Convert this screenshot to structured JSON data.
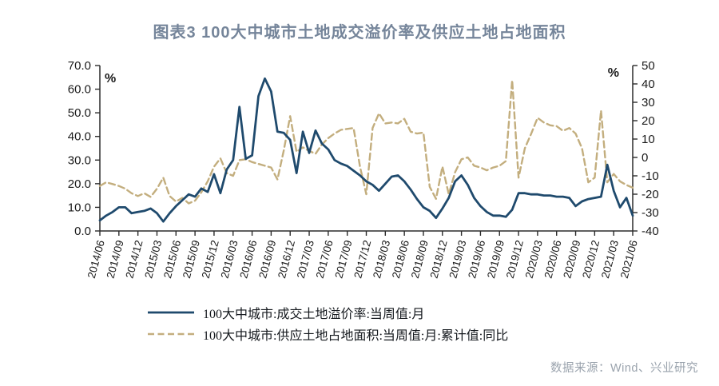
{
  "title": "图表3  100大中城市土地成交溢价率及供应土地占地面积",
  "source": "数据来源：Wind、兴业研究",
  "legend": [
    {
      "label": "100大中城市:成交土地溢价率:当周值:月",
      "style": "solid"
    },
    {
      "label": "100大中城市:供应土地占地面积:当周值:月:累计值:同比",
      "style": "dashed"
    }
  ],
  "colors": {
    "premium_line": "#1F4A6D",
    "supply_line": "#C3AE7E",
    "title_text": "#75859A",
    "source_text": "#9AA3AD",
    "axis_line": "#2b2b2b",
    "axis_text": "#1a1a1a"
  },
  "chart_data": {
    "type": "line",
    "x_start": "2014/06",
    "x_end": "2021/06",
    "x_freq": "monthly",
    "grid": false,
    "legend_position": "bottom",
    "x_tick_labels": [
      "2014/06",
      "2014/09",
      "2014/12",
      "2015/03",
      "2015/06",
      "2015/09",
      "2015/12",
      "2016/03",
      "2016/06",
      "2016/09",
      "2016/12",
      "2017/03",
      "2017/06",
      "2017/09",
      "2017/12",
      "2018/03",
      "2018/06",
      "2018/09",
      "2018/12",
      "2019/03",
      "2019/06",
      "2019/09",
      "2019/12",
      "2020/03",
      "2020/06",
      "2020/09",
      "2020/12",
      "2021/03",
      "2021/06"
    ],
    "left_axis": {
      "label": "%",
      "min": 0,
      "max": 70,
      "tick_labels": [
        "70.0",
        "60.0",
        "50.0",
        "40.0",
        "30.0",
        "20.0",
        "10.0",
        "0.0"
      ]
    },
    "right_axis": {
      "label": "%",
      "min": -40,
      "max": 50,
      "tick_labels": [
        "50",
        "40",
        "30",
        "20",
        "10",
        "0",
        "-10",
        "-20",
        "-30",
        "-40"
      ]
    },
    "series": [
      {
        "name": "100大中城市:成交土地溢价率:当周值:月",
        "axis": "left",
        "line": "solid",
        "color": "#1F4A6D",
        "values": [
          4.5,
          6.5,
          8,
          10,
          10,
          7.5,
          8,
          8.5,
          9.5,
          7.5,
          4,
          7.5,
          10.5,
          13,
          15.5,
          14.5,
          18,
          16.5,
          24,
          16,
          26,
          30,
          52.5,
          30.5,
          32,
          57,
          64.5,
          59,
          42,
          41.5,
          38.5,
          24.5,
          42,
          33,
          42.5,
          37,
          34.5,
          30,
          28.5,
          27.5,
          25.5,
          23.5,
          21,
          19.5,
          17,
          20,
          23,
          23.5,
          21,
          17.5,
          13.5,
          10,
          8.5,
          5.5,
          9.5,
          14,
          21,
          23.5,
          19.5,
          14,
          10.5,
          8,
          6.5,
          6.5,
          6,
          9,
          16,
          16,
          15.5,
          15.5,
          15,
          15,
          14.5,
          14.5,
          14,
          10.5,
          12.5,
          13.5,
          14,
          14.5,
          28,
          17,
          10,
          14,
          6.5
        ]
      },
      {
        "name": "100大中城市:供应土地占地面积:当周值:月:累计值:同比",
        "axis": "right",
        "line": "dashed",
        "color": "#C3AE7E",
        "values": [
          -15.5,
          -13.5,
          -14.5,
          -15.5,
          -17,
          -19.5,
          -21,
          -19.5,
          -21.5,
          -17,
          -11,
          -21,
          -24,
          -22,
          -25,
          -23.5,
          -19,
          -13,
          -5,
          -0.5,
          -8.5,
          -10,
          -1.5,
          -1,
          -2.5,
          -3.5,
          -4.5,
          -5.5,
          -12,
          4,
          22.5,
          3,
          5.5,
          3.5,
          2,
          7,
          10.5,
          13,
          15,
          15.5,
          16,
          -5,
          -20,
          16,
          24,
          18.5,
          19,
          18.5,
          21,
          14,
          13,
          13.5,
          -16,
          -22.5,
          -5,
          -20,
          -8,
          -1,
          0,
          -4.5,
          -5.5,
          -7,
          -5.5,
          -4.5,
          -2,
          42,
          -11,
          5,
          13,
          21.5,
          19,
          17.5,
          17,
          14.5,
          16,
          13,
          5,
          -13.5,
          -11,
          25.5,
          -13.5,
          -9,
          -13,
          -15,
          -16.5
        ]
      }
    ]
  }
}
